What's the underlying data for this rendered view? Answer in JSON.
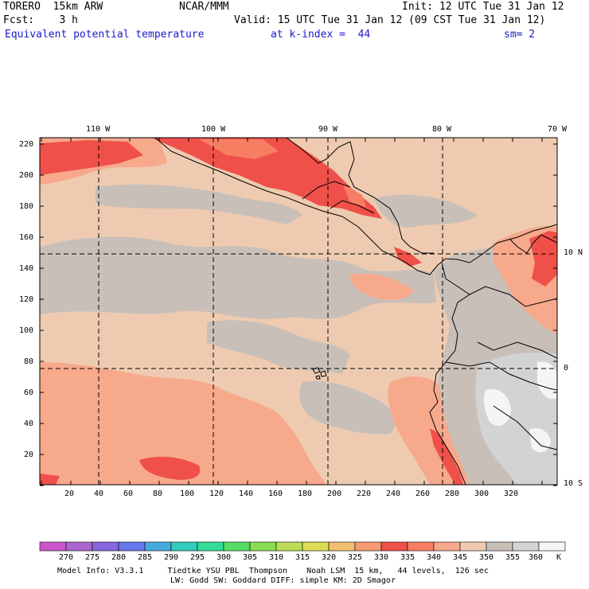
{
  "header": {
    "model": "TORERO  15km ARW",
    "org": "NCAR/MMM",
    "init": "Init: 12 UTC Tue 31 Jan 12",
    "fcst": "Fcst:    3 h",
    "valid": "Valid: 15 UTC Tue 31 Jan 12 (09 CST Tue 31 Jan 12)",
    "field": "Equivalent potential temperature",
    "level": "at k-index =  44",
    "smooth": "sm= 2"
  },
  "map": {
    "lon_labels": [
      "110 W",
      "100 W",
      "90 W",
      "80 W",
      "70 W"
    ],
    "lat_labels": [
      "10 N",
      "0",
      "10 S"
    ],
    "y_ticks": [
      "220",
      "200",
      "180",
      "160",
      "140",
      "120",
      "100",
      "80",
      "60",
      "40",
      "20"
    ],
    "x_ticks": [
      "20",
      "40",
      "60",
      "80",
      "100",
      "120",
      "140",
      "160",
      "180",
      "200",
      "220",
      "240",
      "260",
      "280",
      "300",
      "320"
    ],
    "colors": {
      "base": "#eecbb0",
      "gray": "#c9bfb9",
      "salmon": "#f7a98c",
      "red": "#f0504a",
      "midred": "#f77e63",
      "lightgray": "#d3d3d3",
      "white": "#f5f5f5"
    }
  },
  "colorbar": {
    "labels": [
      "270",
      "275",
      "280",
      "285",
      "290",
      "295",
      "300",
      "305",
      "310",
      "315",
      "320",
      "325",
      "330",
      "335",
      "340",
      "345",
      "350",
      "355",
      "360"
    ],
    "unit": "K",
    "colors": [
      "#cc55cc",
      "#aa66cc",
      "#8866dd",
      "#6677ee",
      "#44aadd",
      "#33ccbb",
      "#33dd99",
      "#55dd66",
      "#88dd55",
      "#bbdd55",
      "#dddd55",
      "#f0c070",
      "#f79a72",
      "#f0504a",
      "#f77e63",
      "#f7a98c",
      "#eecbb0",
      "#c9bfb9",
      "#d3d3d3",
      "#f5f5f5"
    ]
  },
  "footer": {
    "line1": "Model Info: V3.3.1     Tiedtke YSU PBL  Thompson    Noah LSM  15 km,   44 levels,  126 sec",
    "line2": "LW: Godd SW: Goddard DIFF: simple KM: 2D Smagor"
  }
}
